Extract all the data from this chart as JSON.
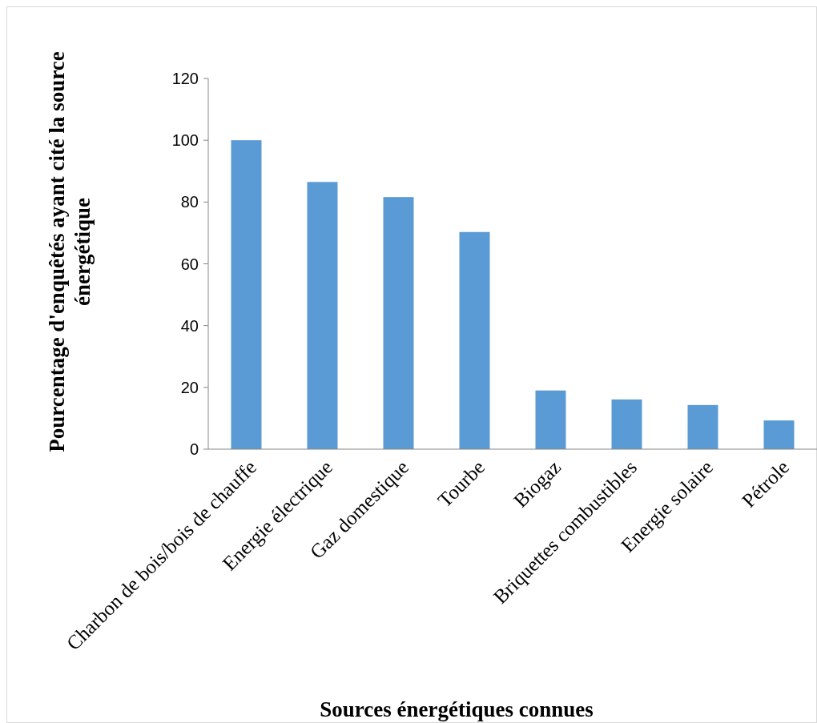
{
  "chart_data": {
    "type": "bar",
    "xlabel": "Sources énergétiques connues",
    "ylabel": "Pourcentage d'enquêtés ayant cité la source énergétique",
    "categories": [
      "Charbon de bois/bois de chauffe",
      "Energie électrique",
      "Gaz domestique",
      "Tourbe",
      "Biogaz",
      "Briquettes combustibles",
      "Energie solaire",
      "Pétrole"
    ],
    "values": [
      100,
      86.5,
      81.6,
      70.3,
      19,
      16.1,
      14.3,
      9.3
    ],
    "color": "#5b9bd5",
    "ylim": [
      0,
      120
    ],
    "yticks": [
      0,
      20,
      40,
      60,
      80,
      100,
      120
    ],
    "grid": false
  }
}
